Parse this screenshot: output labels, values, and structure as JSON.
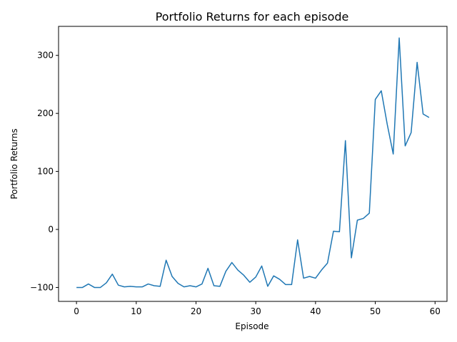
{
  "chart_data": {
    "type": "line",
    "title": "Portfolio Returns for each episode",
    "xlabel": "Episode",
    "ylabel": "Portfolio Returns",
    "xlim": [
      -3,
      62
    ],
    "ylim": [
      -124,
      350
    ],
    "xticks": [
      0,
      10,
      20,
      30,
      40,
      50,
      60
    ],
    "yticks": [
      -100,
      0,
      100,
      200,
      300
    ],
    "grid": false,
    "line_color": "#1f77b4",
    "series": [
      {
        "x": [
          0,
          1,
          2,
          3,
          4,
          5,
          6,
          7,
          8,
          9,
          10,
          11,
          12,
          13,
          14,
          15,
          16,
          17,
          18,
          19,
          20,
          21,
          22,
          23,
          24,
          25,
          26,
          27,
          28,
          29,
          30,
          31,
          32,
          33,
          34,
          35,
          36,
          37,
          38,
          39,
          40,
          41,
          42,
          43,
          44,
          45,
          46,
          47,
          48,
          49,
          50,
          51,
          52,
          53,
          54,
          55,
          56,
          57,
          58,
          59
        ],
        "values": [
          -100,
          -100,
          -94,
          -100,
          -100,
          -92,
          -77,
          -96,
          -99,
          -98,
          -99,
          -99,
          -94,
          -97,
          -98,
          -53,
          -81,
          -93,
          -99,
          -97,
          -99,
          -94,
          -67,
          -97,
          -98,
          -72,
          -57,
          -70,
          -79,
          -91,
          -82,
          -63,
          -98,
          -80,
          -86,
          -95,
          -95,
          -18,
          -84,
          -81,
          -84,
          -70,
          -58,
          -3,
          -4,
          153,
          -49,
          16,
          19,
          28,
          224,
          239,
          181,
          130,
          330,
          144,
          167,
          288,
          199,
          193
        ]
      }
    ]
  }
}
